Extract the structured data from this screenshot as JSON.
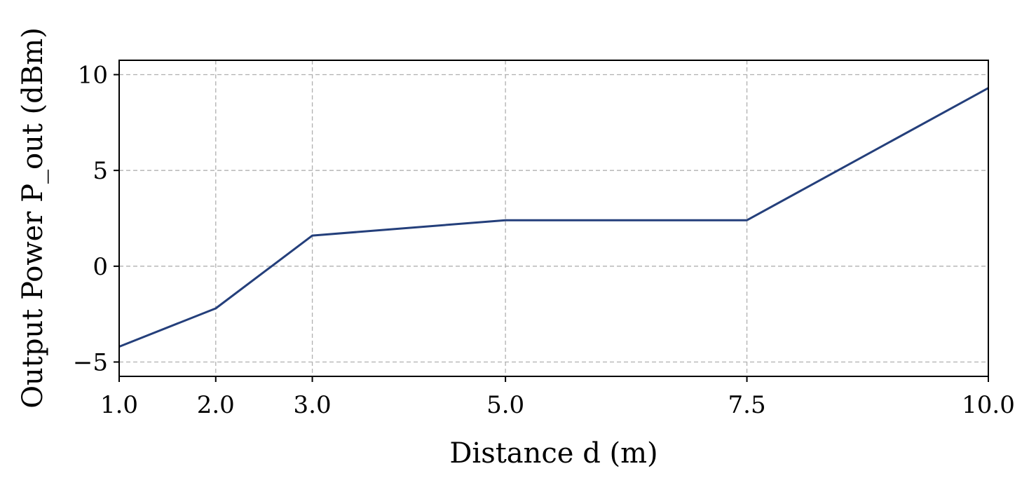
{
  "chart_data": {
    "type": "line",
    "xlabel": "Distance d (m)",
    "ylabel": "Output Power P_out (dBm)",
    "xlim": [
      1.0,
      10.0
    ],
    "ylim": [
      -5.75,
      10.75
    ],
    "grid": true,
    "xticks": [
      {
        "value": 1.0,
        "label": "1.0"
      },
      {
        "value": 2.0,
        "label": "2.0"
      },
      {
        "value": 3.0,
        "label": "3.0"
      },
      {
        "value": 5.0,
        "label": "5.0"
      },
      {
        "value": 7.5,
        "label": "7.5"
      },
      {
        "value": 10.0,
        "label": "10.0"
      }
    ],
    "yticks": [
      {
        "value": -5,
        "label": "−5"
      },
      {
        "value": 0,
        "label": "0"
      },
      {
        "value": 5,
        "label": "5"
      },
      {
        "value": 10,
        "label": "10"
      }
    ],
    "series": [
      {
        "color": "#243f7b",
        "x": [
          1.0,
          2.0,
          3.0,
          5.0,
          7.5,
          10.0
        ],
        "y": [
          -4.2,
          -2.2,
          1.6,
          2.4,
          2.4,
          9.3
        ]
      }
    ]
  }
}
